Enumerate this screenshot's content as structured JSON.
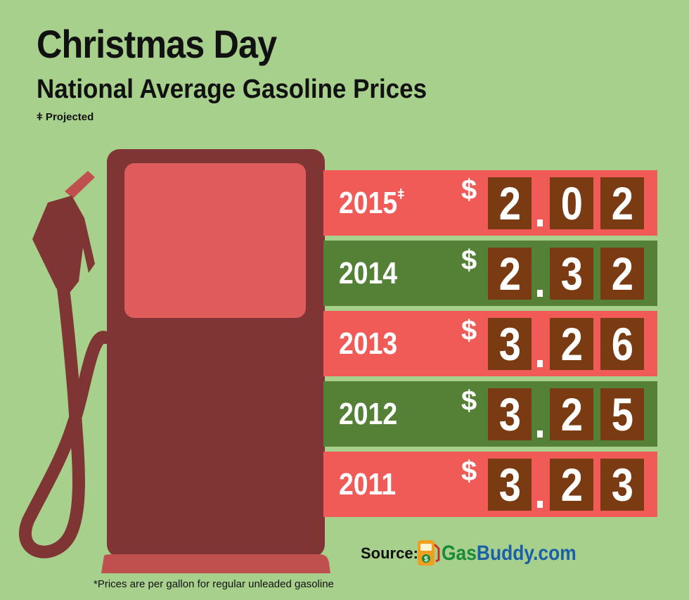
{
  "header": {
    "title": "Christmas Day",
    "subtitle": "National Average Gasoline Prices",
    "legend": "ǂ Projected"
  },
  "rows": [
    {
      "year": "2015",
      "marker": "ǂ",
      "d1": "2",
      "d2": "0",
      "d3": "2",
      "color": "#f05b58"
    },
    {
      "year": "2014",
      "marker": "",
      "d1": "2",
      "d2": "3",
      "d3": "2",
      "color": "#558137"
    },
    {
      "year": "2013",
      "marker": "",
      "d1": "3",
      "d2": "2",
      "d3": "6",
      "color": "#f05b58"
    },
    {
      "year": "2012",
      "marker": "",
      "d1": "3",
      "d2": "2",
      "d3": "5",
      "color": "#558137"
    },
    {
      "year": "2011",
      "marker": "",
      "d1": "3",
      "d2": "2",
      "d3": "3",
      "color": "#f05b58"
    }
  ],
  "currency_symbol": "$",
  "source": {
    "label": "Source:",
    "logo_gas": "Gas",
    "logo_buddy": "Buddy.com",
    "logo_icon": "gas-pump-icon"
  },
  "footnote": "*Prices are per gallon for regular unleaded gasoline",
  "colors": {
    "background": "#a8d08d",
    "pump": "#803535",
    "screen": "#e05c5c",
    "digit_box": "#7a3b12"
  }
}
